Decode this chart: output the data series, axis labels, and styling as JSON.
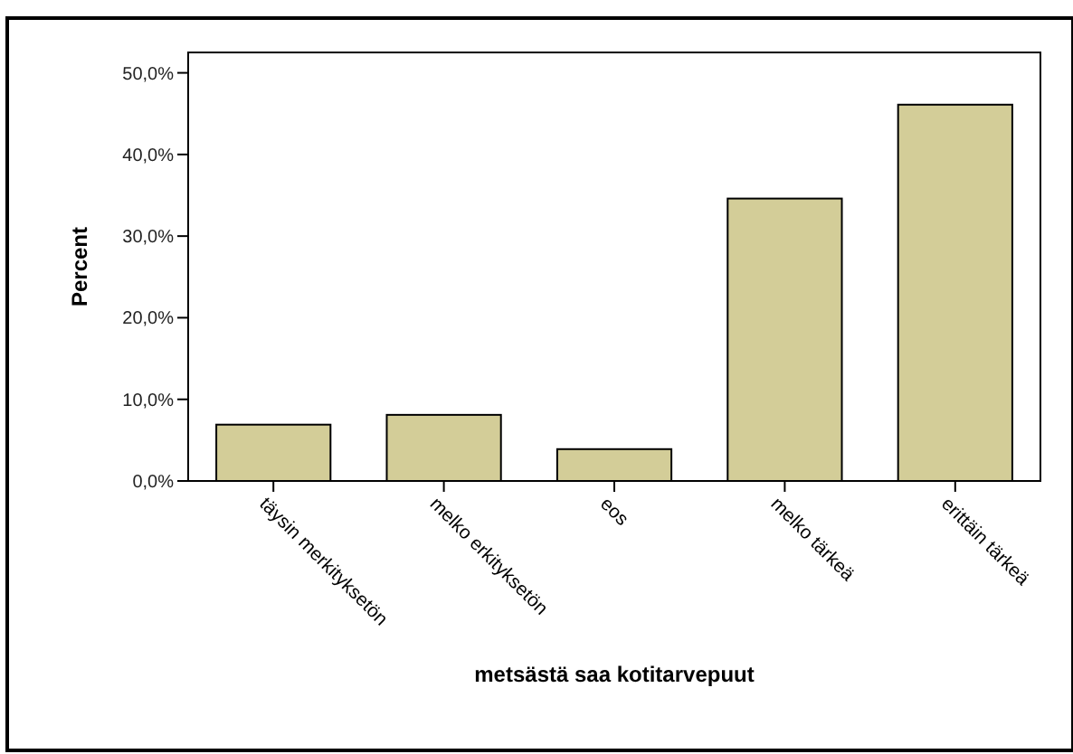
{
  "chart_data": {
    "type": "bar",
    "xlabel": "metsästä saa kotitarvepuut",
    "ylabel": "Percent",
    "categories": [
      "täysin merkityksetön",
      "melko erkityksetön",
      "eos",
      "melko tärkeä",
      "erittäin tärkeä"
    ],
    "values": [
      6.9,
      8.1,
      3.9,
      34.6,
      46.1
    ],
    "color": "#d3cd98",
    "ylim": [
      0,
      52.5
    ],
    "yticks": [
      {
        "value": 0,
        "label": "0,0%"
      },
      {
        "value": 10,
        "label": "10,0%"
      },
      {
        "value": 20,
        "label": "20,0%"
      },
      {
        "value": 30,
        "label": "30,0%"
      },
      {
        "value": 40,
        "label": "40,0%"
      },
      {
        "value": 50,
        "label": "50,0%"
      }
    ],
    "grid": false
  }
}
